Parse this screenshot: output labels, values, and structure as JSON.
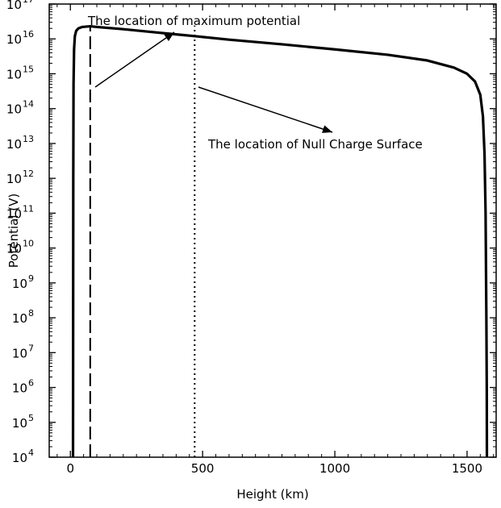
{
  "chart_data": {
    "type": "line",
    "title": "",
    "xlabel": "Height (km)",
    "ylabel": "Potential (V)",
    "x_scale": "linear",
    "y_scale": "log",
    "xlim": [
      -80,
      1610
    ],
    "ylim": [
      10000.0,
      1e+17
    ],
    "x_ticks": [
      0,
      500,
      1000,
      1500
    ],
    "x_tick_labels": [
      "0",
      "500",
      "1000",
      "1500"
    ],
    "y_ticks_exp": [
      4,
      5,
      6,
      7,
      8,
      9,
      10,
      11,
      12,
      13,
      14,
      15,
      16,
      17
    ],
    "y_tick_base": "10",
    "grid": false,
    "series": [
      {
        "style": "solid",
        "color": "#000000",
        "x": [
          10,
          10.5,
          11,
          12,
          14,
          17,
          22,
          30,
          45,
          75,
          100,
          200,
          300,
          400,
          470,
          600,
          800,
          1000,
          1200,
          1350,
          1450,
          1500,
          1530,
          1550,
          1560,
          1566,
          1570,
          1573,
          1574.5,
          1575
        ],
        "y": [
          10000.0,
          100000000.0,
          1000000000000.0,
          500000000000000.0,
          5000000000000000.0,
          1.2e+16,
          1.7e+16,
          2e+16,
          2.2e+16,
          2.3e+16,
          2.2e+16,
          1.9e+16,
          1.6e+16,
          1.35e+16,
          1.2e+16,
          9500000000000000.0,
          7000000000000000.0,
          5000000000000000.0,
          3500000000000000.0,
          2400000000000000.0,
          1500000000000000.0,
          1000000000000000.0,
          600000000000000.0,
          250000000000000.0,
          60000000000000.0,
          5000000000000.0,
          100000000000.0,
          100000000.0,
          1000000.0,
          10000.0
        ]
      }
    ],
    "markers": [
      {
        "name": "maximum potential",
        "x": 75,
        "style": "dashed"
      },
      {
        "name": "null charge surface",
        "x": 470,
        "style": "dotted"
      }
    ],
    "annotations": [
      {
        "text": "The location of maximum potential"
      },
      {
        "text": "The location of Null Charge Surface"
      }
    ]
  }
}
